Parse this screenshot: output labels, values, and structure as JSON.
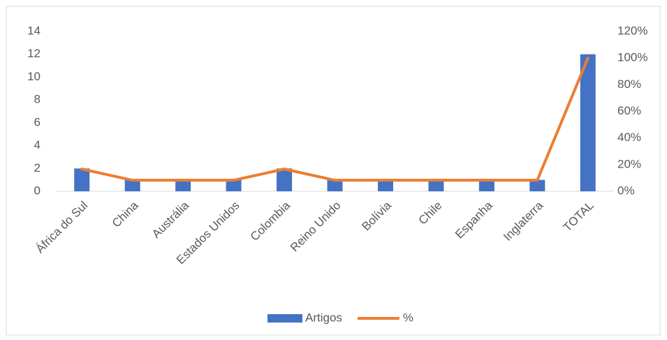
{
  "chart_data": {
    "type": "combo",
    "categories": [
      "África do Sul",
      "China",
      "Austrália",
      "Estados Unidos",
      "Colombia",
      "Reino Unido",
      "Bolívia",
      "Chile",
      "Espanha",
      "Inglaterra",
      "TOTAL"
    ],
    "series": [
      {
        "name": "Artigos",
        "type": "bar",
        "color": "#4472c4",
        "values": [
          2,
          1,
          1,
          1,
          2,
          1,
          1,
          1,
          1,
          1,
          12
        ]
      },
      {
        "name": "%",
        "type": "line",
        "axis": "y2",
        "color": "#ed7d31",
        "values": [
          16.7,
          8.3,
          8.3,
          8.3,
          16.7,
          8.3,
          8.3,
          8.3,
          8.3,
          8.3,
          100
        ]
      }
    ],
    "ylim": [
      0,
      14
    ],
    "yticks": [
      0,
      2,
      4,
      6,
      8,
      10,
      12,
      14
    ],
    "y2lim": [
      0,
      120
    ],
    "y2ticks": [
      {
        "value": 0,
        "label": "0%"
      },
      {
        "value": 20,
        "label": "20%"
      },
      {
        "value": 40,
        "label": "40%"
      },
      {
        "value": 60,
        "label": "60%"
      },
      {
        "value": 80,
        "label": "80%"
      },
      {
        "value": 100,
        "label": "100%"
      },
      {
        "value": 120,
        "label": "120%"
      }
    ],
    "grid": false,
    "legend": "bottom"
  }
}
